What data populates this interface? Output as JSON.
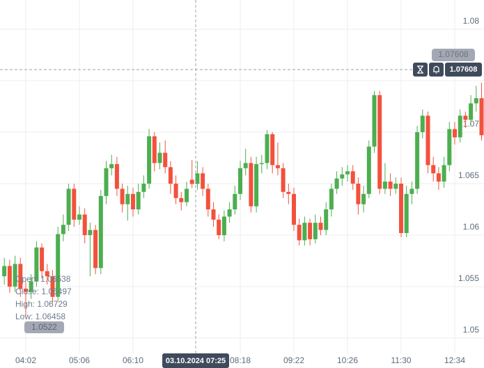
{
  "chart_data": {
    "type": "candlestick",
    "categories": [
      null,
      null,
      null,
      null,
      "04:02",
      null,
      null,
      null,
      null,
      null,
      null,
      null,
      null,
      null,
      "05:06",
      null,
      null,
      null,
      null,
      null,
      null,
      null,
      null,
      null,
      "06:10",
      null,
      null,
      null,
      null,
      null,
      null,
      null,
      null,
      null,
      null,
      null,
      null,
      null,
      null,
      null,
      null,
      null,
      null,
      null,
      "08:18",
      null,
      null,
      null,
      null,
      null,
      null,
      null,
      null,
      null,
      "09:22",
      null,
      null,
      null,
      null,
      null,
      null,
      null,
      null,
      null,
      "10:26",
      null,
      null,
      null,
      null,
      null,
      null,
      null,
      null,
      null,
      "11:30",
      null,
      null,
      null,
      null,
      null,
      null,
      null,
      null,
      null,
      "12:34",
      null,
      null,
      null,
      null,
      null
    ],
    "open": [
      1.056,
      1.057,
      1.055,
      1.0572,
      1.0548,
      1.0545,
      1.0555,
      1.0588,
      1.0565,
      1.056,
      1.054,
      1.0601,
      1.061,
      1.0645,
      1.0615,
      1.062,
      1.06,
      1.0605,
      1.0568,
      1.0638,
      1.0665,
      1.0669,
      1.0645,
      1.063,
      1.064,
      1.0625,
      1.0642,
      1.065,
      1.0696,
      1.067,
      1.068,
      1.0666,
      1.065,
      1.0636,
      1.0632,
      1.06538,
      1.06497,
      1.066,
      1.0645,
      1.0625,
      1.0615,
      1.06,
      1.0618,
      1.0625,
      1.064,
      1.0665,
      1.067,
      1.0628,
      1.0669,
      1.067,
      1.0698,
      1.0668,
      1.0665,
      1.0642,
      1.064,
      1.061,
      1.0595,
      1.0612,
      1.0596,
      1.0612,
      1.0605,
      1.0625,
      1.0645,
      1.0655,
      1.0659,
      1.0662,
      1.065,
      1.063,
      1.064,
      1.0686,
      1.0736,
      1.0645,
      1.0652,
      1.0645,
      1.065,
      1.0602,
      1.064,
      1.0645,
      1.07,
      1.0716,
      1.0668,
      1.066,
      1.0652,
      1.0668,
      1.0703,
      1.0695,
      1.0716,
      1.0712,
      1.0728,
      1.0733
    ],
    "high": [
      1.0578,
      1.0576,
      1.058,
      1.0578,
      1.0555,
      1.0562,
      1.0594,
      1.0592,
      1.0572,
      1.0566,
      1.0608,
      1.062,
      1.065,
      1.065,
      1.0628,
      1.0626,
      1.0612,
      1.061,
      1.0644,
      1.0672,
      1.0678,
      1.0676,
      1.065,
      1.0648,
      1.0646,
      1.065,
      1.0658,
      1.0703,
      1.07,
      1.069,
      1.0692,
      1.0672,
      1.0658,
      1.0642,
      1.0652,
      1.06729,
      1.0672,
      1.0666,
      1.065,
      1.0632,
      1.062,
      1.0624,
      1.0632,
      1.0648,
      1.0672,
      1.0684,
      1.0676,
      1.0676,
      1.0678,
      1.0702,
      1.07,
      1.069,
      1.067,
      1.065,
      1.0646,
      1.0616,
      1.0618,
      1.0616,
      1.062,
      1.0618,
      1.0632,
      1.065,
      1.0662,
      1.0666,
      1.0668,
      1.0668,
      1.0656,
      1.0648,
      1.0692,
      1.074,
      1.074,
      1.067,
      1.066,
      1.0656,
      1.0656,
      1.0648,
      1.0652,
      1.0706,
      1.0722,
      1.072,
      1.0676,
      1.0666,
      1.0676,
      1.071,
      1.071,
      1.0722,
      1.072,
      1.0736,
      1.0745,
      1.0748
    ],
    "low": [
      1.0552,
      1.0544,
      1.0545,
      1.054,
      1.0522,
      1.0538,
      1.055,
      1.0558,
      1.0552,
      1.0534,
      1.0536,
      1.0594,
      1.0604,
      1.0608,
      1.061,
      1.0592,
      1.056,
      1.0562,
      1.0562,
      1.063,
      1.0658,
      1.0638,
      1.0622,
      1.0614,
      1.0618,
      1.062,
      1.0636,
      1.0645,
      1.0662,
      1.0664,
      1.066,
      1.064,
      1.063,
      1.0624,
      1.0628,
      1.06458,
      1.0644,
      1.0638,
      1.0618,
      1.0608,
      1.0596,
      1.0594,
      1.0612,
      1.062,
      1.0634,
      1.0658,
      1.0622,
      1.0622,
      1.066,
      1.0664,
      1.066,
      1.0658,
      1.0636,
      1.063,
      1.0604,
      1.059,
      1.059,
      1.059,
      1.0592,
      1.06,
      1.06,
      1.0618,
      1.064,
      1.0648,
      1.0652,
      1.0644,
      1.062,
      1.0622,
      1.0636,
      1.068,
      1.064,
      1.064,
      1.0638,
      1.064,
      1.0598,
      1.0598,
      1.063,
      1.064,
      1.0694,
      1.066,
      1.0652,
      1.0644,
      1.0646,
      1.0662,
      1.0688,
      1.069,
      1.0704,
      1.0706,
      1.072,
      1.0692
    ],
    "close": [
      1.057,
      1.055,
      1.0572,
      1.0548,
      1.0545,
      1.0555,
      1.0588,
      1.0565,
      1.056,
      1.054,
      1.0601,
      1.061,
      1.0645,
      1.0615,
      1.062,
      1.06,
      1.0605,
      1.0568,
      1.0638,
      1.0665,
      1.0669,
      1.0645,
      1.063,
      1.064,
      1.0625,
      1.0642,
      1.065,
      1.0696,
      1.067,
      1.068,
      1.0666,
      1.065,
      1.0636,
      1.0632,
      1.0645,
      1.06497,
      1.066,
      1.0645,
      1.0625,
      1.0615,
      1.06,
      1.0618,
      1.0625,
      1.064,
      1.0665,
      1.067,
      1.0628,
      1.0669,
      1.067,
      1.0698,
      1.0668,
      1.0665,
      1.0642,
      1.064,
      1.061,
      1.0595,
      1.0612,
      1.0596,
      1.0612,
      1.0605,
      1.0625,
      1.0645,
      1.0655,
      1.0659,
      1.0662,
      1.065,
      1.063,
      1.064,
      1.0686,
      1.0736,
      1.0645,
      1.0652,
      1.0645,
      1.065,
      1.0602,
      1.064,
      1.0645,
      1.07,
      1.0716,
      1.0668,
      1.066,
      1.0652,
      1.0668,
      1.0703,
      1.0695,
      1.0716,
      1.0712,
      1.0728,
      1.0733,
      1.0697
    ],
    "up_color": "#4cae4f",
    "down_color": "#f2513d",
    "ylim": [
      1.04851,
      1.08284
    ],
    "yticks": [
      1.05,
      1.055,
      1.06,
      1.065,
      1.07,
      1.075,
      1.08
    ],
    "grid": true,
    "last_price": 1.07608
  },
  "crosshair": {
    "time_label": "03.10.2024 07:25",
    "price_label": "1.0522"
  },
  "info": [
    "Open: 1.06538",
    "Close: 1.06497",
    "High: 1.06729",
    "Low: 1.06458"
  ]
}
